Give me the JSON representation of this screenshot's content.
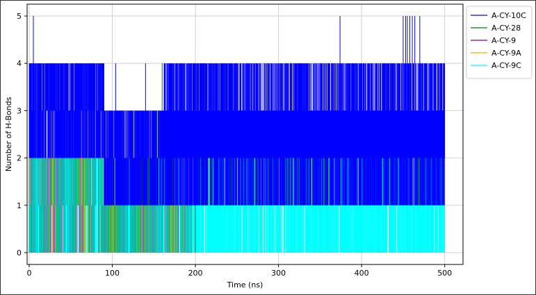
{
  "chart_data": {
    "type": "line",
    "title": "",
    "xlabel": "Time (ns)",
    "ylabel": "Number of H-Bonds",
    "xlim": [
      -2.5,
      522
    ],
    "ylim": [
      -0.25,
      5.25
    ],
    "xticks": [
      0,
      100,
      200,
      300,
      400,
      500
    ],
    "yticks": [
      0,
      1,
      2,
      3,
      4,
      5
    ],
    "grid": true,
    "legend_position": "upper-right-outside",
    "series": [
      {
        "name": "A-CY-10C",
        "color": "#0000ff",
        "segments": [
          {
            "from": 0,
            "to": 5,
            "range": [
              2,
              4
            ],
            "dense": true
          },
          {
            "from": 5,
            "to": 90,
            "range": [
              2,
              4
            ],
            "dense": true
          },
          {
            "from": 90,
            "to": 162,
            "range": [
              1,
              3
            ],
            "dense": true
          },
          {
            "from": 162,
            "to": 500,
            "range": [
              1,
              4
            ],
            "dense": true
          }
        ],
        "spikes": [
          {
            "x": 5,
            "y": 5
          },
          {
            "x": 374,
            "y": 5
          },
          {
            "x": 450,
            "y": 5
          },
          {
            "x": 453,
            "y": 5
          },
          {
            "x": 455,
            "y": 5
          },
          {
            "x": 458,
            "y": 5
          },
          {
            "x": 461,
            "y": 5
          },
          {
            "x": 464,
            "y": 5
          },
          {
            "x": 470,
            "y": 5
          },
          {
            "x": 140,
            "y": 4
          },
          {
            "x": 104,
            "y": 4
          }
        ]
      },
      {
        "name": "A-CY-28",
        "color": "#008000",
        "segments": [
          {
            "from": 0,
            "to": 200,
            "range": [
              0,
              2
            ],
            "dense": false
          },
          {
            "from": 200,
            "to": 500,
            "range": [
              1,
              3
            ],
            "dense": false
          }
        ],
        "spikes": [
          {
            "x": 160,
            "y": 4
          },
          {
            "x": 155,
            "y": 3
          }
        ]
      },
      {
        "name": "A-CY-9",
        "color": "#800080",
        "segments": [
          {
            "from": 0,
            "to": 200,
            "range": [
              0,
              2
            ],
            "dense": false
          },
          {
            "from": 400,
            "to": 450,
            "range": [
              2,
              3
            ],
            "dense": false
          }
        ],
        "spikes": [
          {
            "x": 422,
            "y": 3
          },
          {
            "x": 426,
            "y": 3
          },
          {
            "x": 440,
            "y": 3
          }
        ]
      },
      {
        "name": "A-CY-9A",
        "color": "#ffa500",
        "segments": [
          {
            "from": 0,
            "to": 200,
            "range": [
              0,
              2
            ],
            "dense": false
          }
        ],
        "spikes": [
          {
            "x": 335,
            "y": 0
          }
        ]
      },
      {
        "name": "A-CY-9C",
        "color": "#00ffff",
        "segments": [
          {
            "from": 0,
            "to": 500,
            "range": [
              0,
              2
            ],
            "dense": true
          }
        ],
        "spikes": []
      }
    ]
  }
}
